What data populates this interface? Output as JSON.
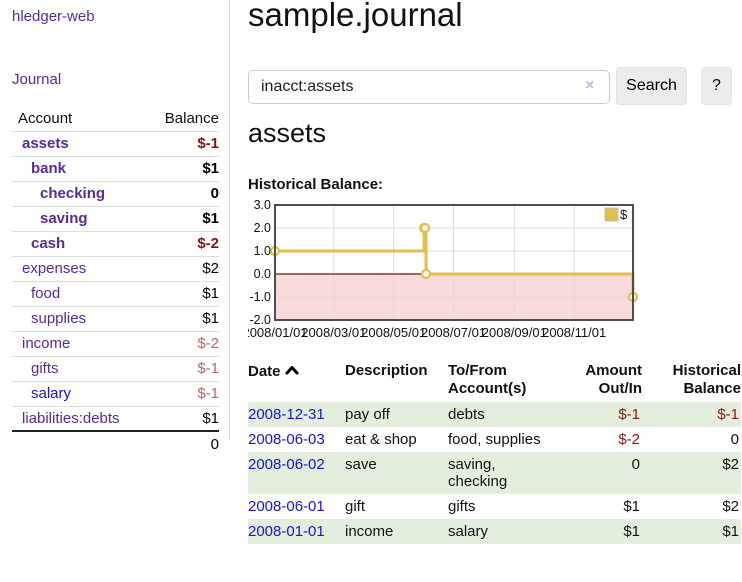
{
  "sidebar": {
    "brand": "hledger-web",
    "nav": {
      "journal": "Journal"
    },
    "accounts_table": {
      "headers": {
        "account": "Account",
        "balance": "Balance"
      },
      "rows": [
        {
          "name": "assets",
          "depth": 1,
          "bold": true,
          "balance": "$-1",
          "balance_style": "neg-strong"
        },
        {
          "name": "bank",
          "depth": 2,
          "bold": true,
          "balance": "$1",
          "balance_style": "pos"
        },
        {
          "name": "checking",
          "depth": 3,
          "bold": true,
          "balance": "0",
          "balance_style": "pos"
        },
        {
          "name": "saving",
          "depth": 3,
          "bold": true,
          "balance": "$1",
          "balance_style": "pos"
        },
        {
          "name": "cash",
          "depth": 2,
          "bold": true,
          "balance": "$-2",
          "balance_style": "neg-strong"
        },
        {
          "name": "expenses",
          "depth": 1,
          "bold": false,
          "balance": "$2",
          "balance_style": "pos"
        },
        {
          "name": "food",
          "depth": 2,
          "bold": false,
          "balance": "$1",
          "balance_style": "pos"
        },
        {
          "name": "supplies",
          "depth": 2,
          "bold": false,
          "balance": "$1",
          "balance_style": "pos"
        },
        {
          "name": "income",
          "depth": 1,
          "bold": false,
          "balance": "$-2",
          "balance_style": "neg-faded"
        },
        {
          "name": "gifts",
          "depth": 2,
          "bold": false,
          "balance": "$-1",
          "balance_style": "neg-faded"
        },
        {
          "name": "salary",
          "depth": 2,
          "bold": false,
          "link_color": "blue",
          "balance": "$-1",
          "balance_style": "neg-faded"
        },
        {
          "name": "liabilities:debts",
          "depth": 1,
          "bold": false,
          "balance": "$1",
          "balance_style": "pos"
        }
      ],
      "total": "0"
    }
  },
  "main": {
    "title": "sample.journal",
    "search": {
      "value": "inacct:assets",
      "clear_icon": "×",
      "button": "Search",
      "help_button": "?"
    },
    "account_heading": "assets",
    "chart_heading": "Historical Balance:"
  },
  "chart_data": {
    "type": "line",
    "step": true,
    "title": "Historical Balance",
    "legend": "$",
    "legend_position": "top-right",
    "grid": true,
    "x_range": [
      "2008-01-01",
      "2008-12-31"
    ],
    "ylim": [
      -2,
      3
    ],
    "yticks": [
      "3.0",
      "2.0",
      "1.0",
      "0.0",
      "-1.0",
      "-2.0"
    ],
    "ytick_values": [
      3,
      2,
      1,
      0,
      -1,
      -2
    ],
    "xticks": [
      "2008/01/01",
      "2008/03/01",
      "2008/05/01",
      "2008/07/01",
      "2008/09/01",
      "2008/11/01"
    ],
    "series": [
      {
        "name": "$",
        "color": "#e3bd4e",
        "points": [
          {
            "date": "2008-01-01",
            "value": 1
          },
          {
            "date": "2008-06-01",
            "value": 2
          },
          {
            "date": "2008-06-02",
            "value": 2
          },
          {
            "date": "2008-06-03",
            "value": 0
          },
          {
            "date": "2008-12-31",
            "value": -1
          }
        ]
      }
    ],
    "negative_region_color": "#fadbdb",
    "zero_line_color": "#7d0d0d",
    "grid_color": "#dcdcdc",
    "border_color": "#4d4d4d"
  },
  "register_table": {
    "headers": {
      "date": [
        "Date"
      ],
      "description": [
        "Description"
      ],
      "account": [
        "To/From",
        "Account(s)"
      ],
      "amount": [
        "Amount",
        "Out/In"
      ],
      "balance": [
        "Historical",
        "Balance"
      ]
    },
    "rows": [
      {
        "date": "2008-12-31",
        "description": "pay off",
        "accounts": [
          "debts"
        ],
        "amount": "$-1",
        "amount_neg": true,
        "balance": "$-1",
        "balance_neg": true
      },
      {
        "date": "2008-06-03",
        "description": "eat & shop",
        "accounts": [
          "food, supplies"
        ],
        "amount": "$-2",
        "amount_neg": true,
        "balance": "0",
        "balance_neg": false
      },
      {
        "date": "2008-06-02",
        "description": "save",
        "accounts": [
          "saving,",
          "checking"
        ],
        "amount": "0",
        "amount_neg": false,
        "balance": "$2",
        "balance_neg": false
      },
      {
        "date": "2008-06-01",
        "description": "gift",
        "accounts": [
          "gifts"
        ],
        "amount": "$1",
        "amount_neg": false,
        "balance": "$2",
        "balance_neg": false
      },
      {
        "date": "2008-01-01",
        "description": "income",
        "accounts": [
          "salary"
        ],
        "amount": "$1",
        "amount_neg": false,
        "balance": "$1",
        "balance_neg": false
      }
    ]
  }
}
